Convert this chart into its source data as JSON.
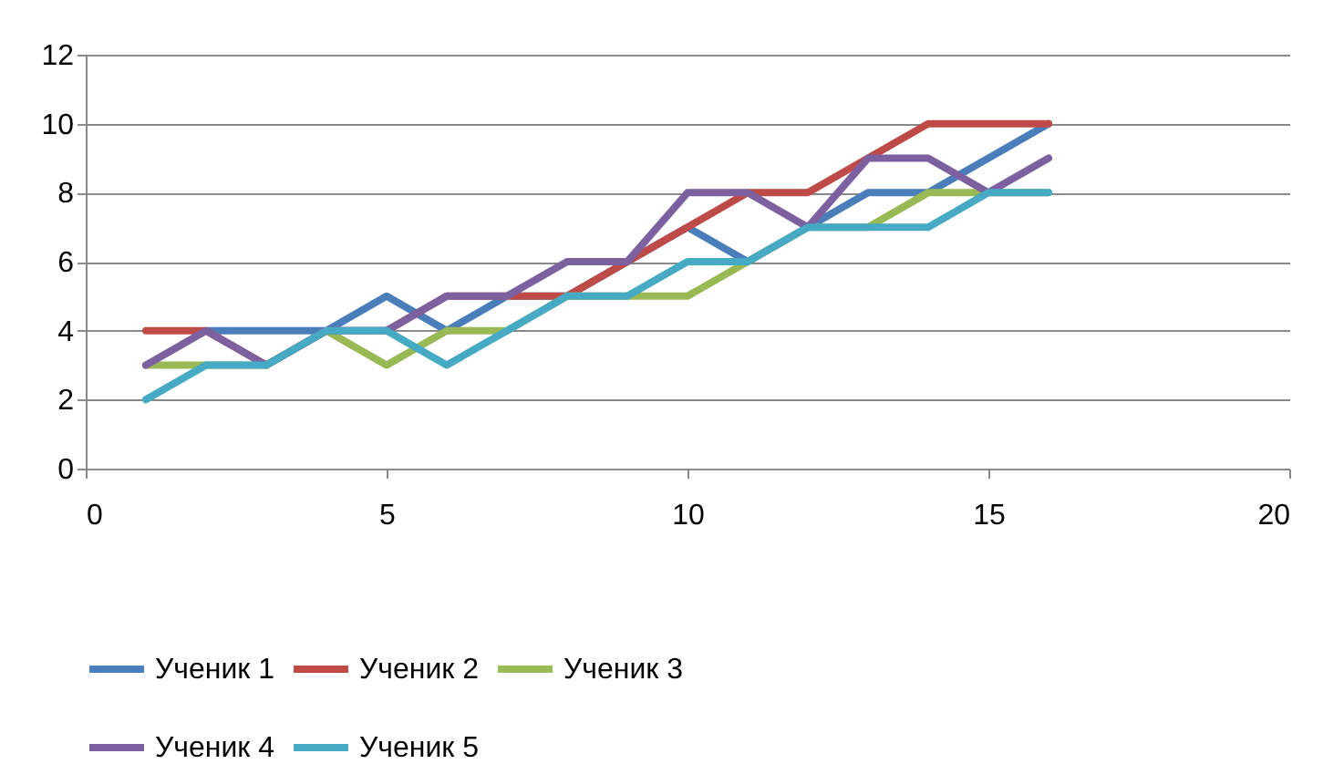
{
  "chart_data": {
    "type": "line",
    "x": [
      1,
      2,
      3,
      4,
      5,
      6,
      7,
      8,
      9,
      10,
      11,
      12,
      13,
      14,
      15,
      16
    ],
    "series": [
      {
        "name": "Ученик 1",
        "color": "#4a7ebb",
        "values": [
          null,
          4,
          4,
          4,
          5,
          4,
          5,
          5,
          6,
          7,
          6,
          7,
          8,
          8,
          9,
          10
        ]
      },
      {
        "name": "Ученик 2",
        "color": "#be4b48",
        "values": [
          4,
          4,
          3,
          4,
          4,
          5,
          5,
          5,
          6,
          7,
          8,
          8,
          9,
          10,
          10,
          10
        ]
      },
      {
        "name": "Ученик 3",
        "color": "#98b954",
        "values": [
          3,
          3,
          3,
          4,
          3,
          4,
          4,
          5,
          5,
          5,
          6,
          7,
          7,
          8,
          8,
          8
        ]
      },
      {
        "name": "Ученик 4",
        "color": "#7d60a0",
        "values": [
          3,
          4,
          3,
          4,
          4,
          5,
          5,
          6,
          6,
          8,
          8,
          7,
          9,
          9,
          8,
          9
        ]
      },
      {
        "name": "Ученик 5",
        "color": "#46aac5",
        "values": [
          2,
          3,
          3,
          4,
          4,
          3,
          4,
          5,
          5,
          6,
          6,
          7,
          7,
          7,
          8,
          8
        ]
      }
    ],
    "xlim": [
      0,
      20
    ],
    "xticks": [
      0,
      5,
      10,
      15,
      20
    ],
    "ylim": [
      0,
      12
    ],
    "yticks": [
      0,
      2,
      4,
      6,
      8,
      10,
      12
    ],
    "grid": "y",
    "legend": "bottom",
    "marker": "none",
    "line_style": "solid"
  }
}
